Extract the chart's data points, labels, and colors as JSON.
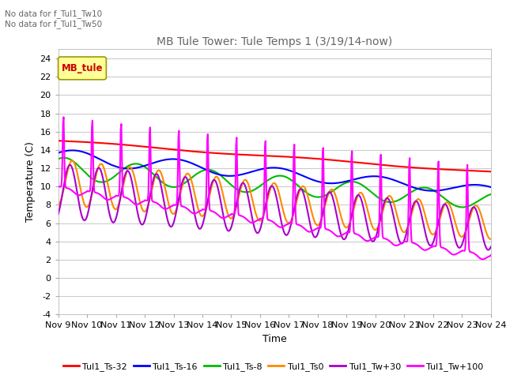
{
  "title": "MB Tule Tower: Tule Temps 1 (3/19/14-now)",
  "xlabel": "Time",
  "ylabel": "Temperature (C)",
  "no_data_text": [
    "No data for f_Tul1_Tw10",
    "No data for f_Tul1_Tw50"
  ],
  "legend_box_label": "MB_tule",
  "x_tick_labels": [
    "Nov 9",
    "Nov 10",
    "Nov 11",
    "Nov 12",
    "Nov 13",
    "Nov 14",
    "Nov 15",
    "Nov 16",
    "Nov 17",
    "Nov 18",
    "Nov 19",
    "Nov 20",
    "Nov 21",
    "Nov 22",
    "Nov 23",
    "Nov 24"
  ],
  "ylim": [
    -4,
    25
  ],
  "yticks": [
    -4,
    -2,
    0,
    2,
    4,
    6,
    8,
    10,
    12,
    14,
    16,
    18,
    20,
    22,
    24
  ],
  "series": {
    "Tul1_Ts-32": {
      "color": "#ff0000",
      "linewidth": 1.5
    },
    "Tul1_Ts-16": {
      "color": "#0000ff",
      "linewidth": 1.5
    },
    "Tul1_Ts-8": {
      "color": "#00bb00",
      "linewidth": 1.5
    },
    "Tul1_Ts0": {
      "color": "#ff8800",
      "linewidth": 1.5
    },
    "Tul1_Tw+30": {
      "color": "#aa00cc",
      "linewidth": 1.5
    },
    "Tul1_Tw+100": {
      "color": "#ff00ff",
      "linewidth": 1.5
    }
  },
  "background_color": "#ffffff",
  "grid_color": "#cccccc",
  "title_color": "#666666",
  "no_data_color": "#666666"
}
